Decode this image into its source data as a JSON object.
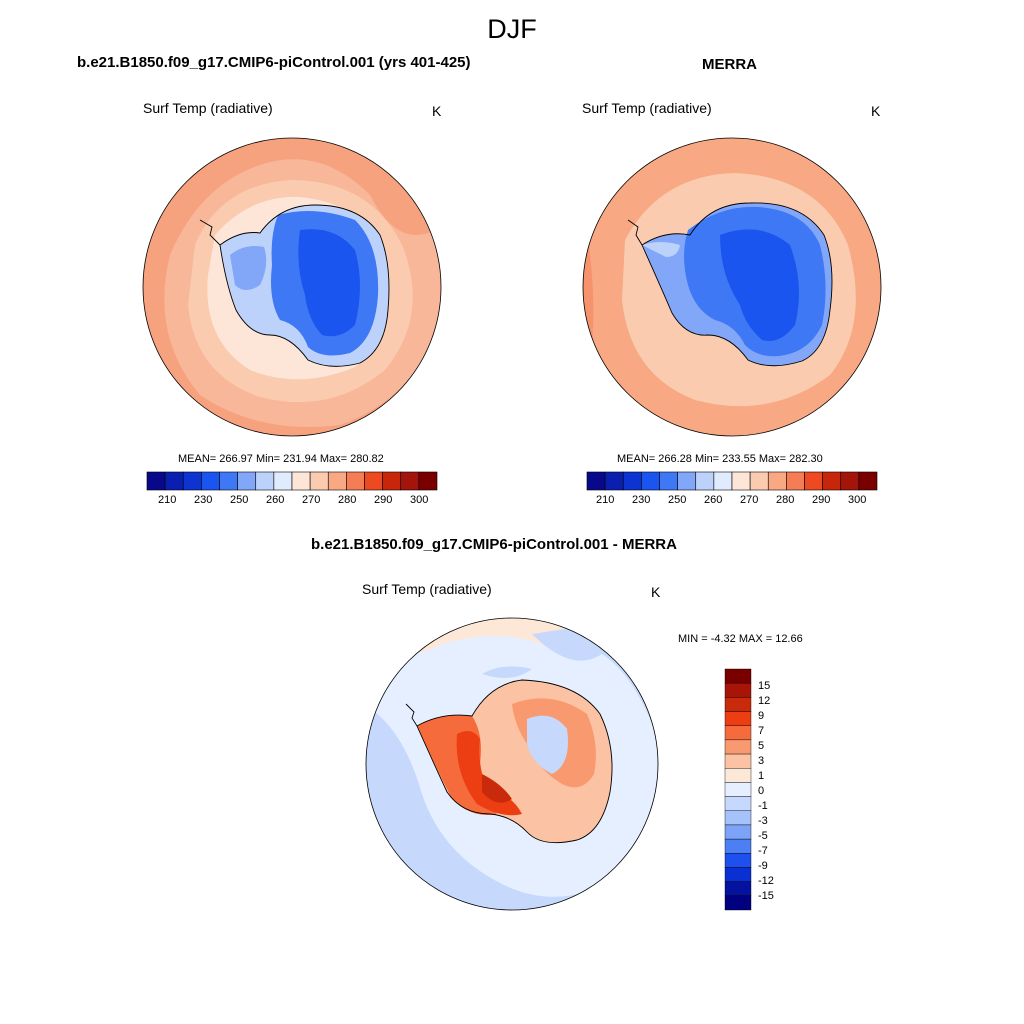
{
  "figure": {
    "title": "DJF",
    "colors": {
      "abs_scale": [
        "#08088a",
        "#0a1fb0",
        "#0d33d0",
        "#1a55f0",
        "#3f78f5",
        "#82a6f8",
        "#bdd2fa",
        "#e0ecfd",
        "#fde6d8",
        "#fbcbb0",
        "#f8a882",
        "#f57d55",
        "#ee4a22",
        "#c8260b",
        "#a3140a",
        "#7a0000"
      ],
      "diff_scale": [
        "#7a0000",
        "#a81508",
        "#c82a0b",
        "#ec3e12",
        "#f66b3c",
        "#f9996f",
        "#fbc3a3",
        "#fde8d8",
        "#e6efff",
        "#c6d9fc",
        "#a6c2fb",
        "#7ca3f8",
        "#4c7ef4",
        "#1d50ee",
        "#0a2fd3",
        "#05119f",
        "#000080"
      ]
    }
  },
  "panels": [
    {
      "id": "model",
      "title": "b.e21.B1850.f09_g17.CMIP6-piControl.001 (yrs 401-425)",
      "variable": "Surf Temp (radiative)",
      "units": "K",
      "stats": "MEAN= 266.97  Min= 231.94  Max= 280.82",
      "colorbar_ticks": [
        "210",
        "230",
        "250",
        "260",
        "270",
        "280",
        "290",
        "300"
      ]
    },
    {
      "id": "obs",
      "title": "MERRA",
      "variable": "Surf Temp (radiative)",
      "units": "K",
      "stats": "MEAN= 266.28  Min= 233.55  Max= 282.30",
      "colorbar_ticks": [
        "210",
        "230",
        "250",
        "260",
        "270",
        "280",
        "290",
        "300"
      ]
    },
    {
      "id": "diff",
      "title": "b.e21.B1850.f09_g17.CMIP6-piControl.001 - MERRA",
      "variable": "Surf Temp (radiative)",
      "units": "K",
      "stats": "MIN =  -4.32 MAX =  12.66",
      "colorbar_ticks": [
        "15",
        "12",
        "9",
        "7",
        "5",
        "3",
        "1",
        "0",
        "-1",
        "-3",
        "-5",
        "-7",
        "-9",
        "-12",
        "-15"
      ]
    }
  ]
}
